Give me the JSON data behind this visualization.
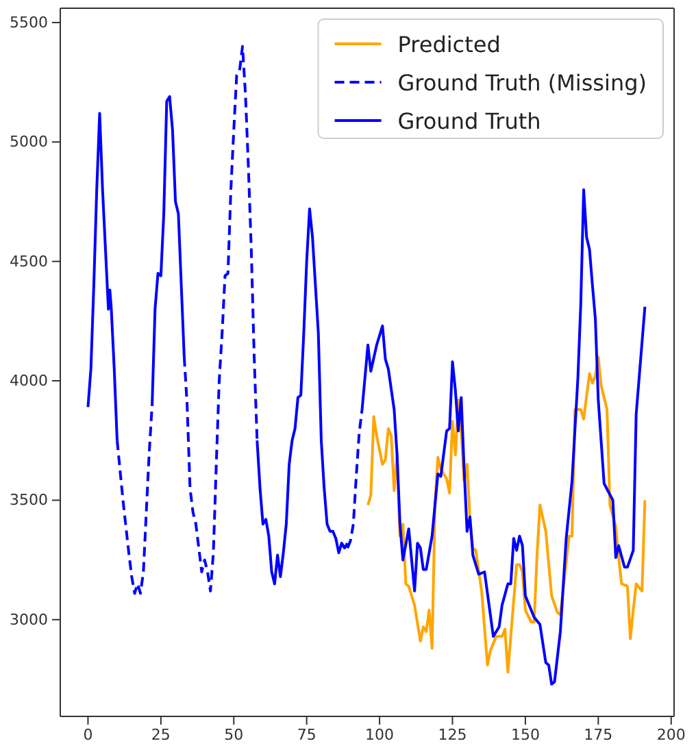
{
  "chart_data": {
    "type": "line",
    "xlim": [
      -9.5,
      201
    ],
    "ylim": [
      2595,
      5560
    ],
    "xticks": [
      0,
      25,
      50,
      75,
      100,
      125,
      150,
      175,
      200
    ],
    "yticks": [
      3000,
      3500,
      4000,
      4500,
      5000,
      5500
    ],
    "legend": "top right",
    "grid": false,
    "series": [
      {
        "name": "Predicted",
        "color": "#ffa500",
        "line_style": "solid",
        "x": [
          96,
          97,
          98,
          99,
          101,
          102,
          103,
          104,
          105,
          106,
          107,
          108,
          109,
          110,
          112,
          114,
          115,
          116,
          117,
          118,
          119,
          120,
          121,
          123,
          124,
          125,
          126,
          127,
          128,
          129,
          130,
          131,
          132,
          133,
          135,
          137,
          138,
          140,
          142,
          143,
          144,
          145,
          147,
          148,
          149,
          150,
          152,
          153,
          154,
          155,
          157,
          159,
          161,
          162,
          165,
          166,
          167,
          169,
          170,
          172,
          173,
          174,
          175,
          176,
          178,
          179,
          181,
          182,
          183,
          185,
          186,
          187,
          188,
          190,
          191
        ],
        "values": [
          3480,
          3520,
          3850,
          3770,
          3650,
          3670,
          3800,
          3770,
          3540,
          3690,
          3350,
          3400,
          3150,
          3140,
          3060,
          2910,
          2970,
          2950,
          3040,
          2880,
          3480,
          3680,
          3630,
          3590,
          3530,
          3830,
          3690,
          3920,
          3790,
          3580,
          3650,
          3420,
          3300,
          3290,
          3120,
          2810,
          2870,
          2930,
          2930,
          2960,
          2780,
          2930,
          3230,
          3230,
          3200,
          3040,
          2990,
          2990,
          3270,
          3480,
          3370,
          3100,
          3030,
          3020,
          3350,
          3350,
          3880,
          3880,
          3840,
          4030,
          3990,
          4020,
          4100,
          3980,
          3880,
          3480,
          3390,
          3260,
          3150,
          3140,
          2920,
          3040,
          3150,
          3120,
          3500
        ]
      },
      {
        "name": "Ground Truth (Missing)",
        "color": "#0000ff",
        "line_style": "dashed",
        "x": [
          10,
          12,
          14,
          15,
          16,
          17,
          18,
          19,
          20,
          21,
          22,
          22.5,
          33,
          34,
          35,
          36,
          37,
          38,
          39,
          40,
          41,
          42,
          43,
          44,
          45,
          46,
          47,
          48,
          49,
          50,
          51,
          52,
          53,
          54,
          55,
          56,
          57,
          58,
          58.5,
          89,
          90,
          91,
          92,
          93,
          94
        ],
        "values": [
          3750,
          3500,
          3280,
          3180,
          3110,
          3150,
          3110,
          3200,
          3450,
          3700,
          3900,
          null,
          4100,
          3900,
          3550,
          3450,
          3400,
          3300,
          3200,
          3250,
          3200,
          3120,
          3280,
          3650,
          4000,
          4200,
          4440,
          4450,
          4800,
          5050,
          5280,
          5300,
          5400,
          5200,
          4900,
          4550,
          4100,
          3750,
          null,
          3300,
          3330,
          3400,
          3600,
          3780,
          3880
        ]
      },
      {
        "name": "Ground Truth",
        "color": "#0000ff",
        "line_style": "solid",
        "x": [
          0,
          1,
          2,
          3,
          4,
          5,
          6,
          7,
          7.5,
          8,
          9,
          10,
          10.5,
          22,
          23,
          24,
          25,
          26,
          27,
          28,
          29,
          30,
          31,
          32,
          33,
          33.5,
          58,
          59,
          60,
          61,
          62,
          63,
          64,
          65,
          66,
          67,
          68,
          69,
          70,
          71,
          72,
          73,
          74,
          75,
          76,
          77,
          78,
          79,
          80,
          81,
          82,
          83,
          84,
          85,
          86,
          87,
          88,
          89,
          89.5,
          94,
          96,
          97,
          99,
          101,
          102,
          103,
          105,
          106,
          107,
          108,
          110,
          112,
          113,
          114,
          115,
          116,
          118,
          120,
          121,
          123,
          124,
          125,
          126,
          127,
          128,
          129,
          130,
          131,
          132,
          134,
          136,
          139,
          141,
          142,
          144,
          145,
          146,
          147,
          148,
          149,
          150,
          153,
          155,
          157,
          158,
          159,
          160,
          162,
          164,
          166,
          168,
          169,
          170,
          171,
          172,
          173,
          174,
          175,
          177,
          180,
          181,
          182,
          184,
          185,
          187,
          188,
          191
        ],
        "values": [
          3890,
          4050,
          4400,
          4800,
          5120,
          4800,
          4550,
          4300,
          4380,
          4300,
          4050,
          3750,
          null,
          3900,
          4300,
          4450,
          4440,
          4700,
          5170,
          5190,
          5050,
          4750,
          4700,
          4400,
          4100,
          null,
          3750,
          3550,
          3400,
          3420,
          3350,
          3200,
          3150,
          3270,
          3180,
          3280,
          3400,
          3650,
          3750,
          3800,
          3930,
          3940,
          4200,
          4500,
          4720,
          4600,
          4400,
          4200,
          3750,
          3550,
          3400,
          3370,
          3370,
          3340,
          3280,
          3320,
          3300,
          3320,
          null,
          3880,
          4150,
          4040,
          4150,
          4230,
          4090,
          4050,
          3880,
          3690,
          3400,
          3250,
          3380,
          3120,
          3320,
          3300,
          3210,
          3210,
          3350,
          3610,
          3600,
          3790,
          3800,
          4080,
          3960,
          3790,
          3930,
          3630,
          3370,
          3430,
          3270,
          3190,
          3200,
          2930,
          2970,
          3060,
          3150,
          3150,
          3340,
          3290,
          3350,
          3310,
          3100,
          3010,
          2980,
          2820,
          2810,
          2730,
          2740,
          2950,
          3340,
          3580,
          4010,
          4320,
          4800,
          4600,
          4550,
          4400,
          4260,
          3920,
          3570,
          3500,
          3260,
          3310,
          3220,
          3220,
          3290,
          3860,
          4310
        ]
      }
    ]
  }
}
